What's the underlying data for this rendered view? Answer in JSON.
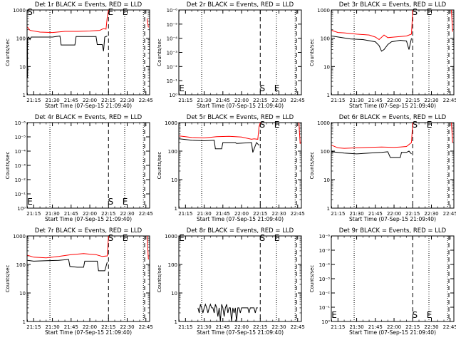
{
  "chart_data": [
    {
      "type": "line",
      "title": "Det 1r BLACK = Events, RED = LLD",
      "ylabel": "Counts/sec",
      "xlabel": "Start Time (07-Sep-15 21:09:40)",
      "x_ticks": [
        "21:15",
        "21:30",
        "21:45",
        "22:00",
        "22:15",
        "22:30",
        "22:45"
      ],
      "y_scale": "log",
      "ylim": [
        1,
        1000
      ],
      "y_ticks": [
        "1",
        "10",
        "100",
        "1000"
      ],
      "markers": [
        "S",
        "E",
        "E"
      ],
      "series": [
        {
          "color": "#000000",
          "points": [
            [
              "21:10",
              4
            ],
            [
              "21:10",
              100
            ],
            [
              "21:11",
              110
            ],
            [
              "21:12",
              90
            ],
            [
              "21:13",
              110
            ],
            [
              "21:20",
              110
            ],
            [
              "21:30",
              110
            ],
            [
              "21:36",
              120
            ],
            [
              "21:37",
              58
            ],
            [
              "21:48",
              58
            ],
            [
              "21:49",
              115
            ],
            [
              "22:05",
              115
            ],
            [
              "22:06",
              60
            ],
            [
              "22:10",
              60
            ],
            [
              "22:11",
              35
            ],
            [
              "22:12",
              110
            ],
            [
              "22:14",
              120
            ]
          ]
        },
        {
          "color": "#ff0000",
          "points": [
            [
              "21:10",
              250
            ],
            [
              "21:12",
              190
            ],
            [
              "21:20",
              165
            ],
            [
              "21:30",
              160
            ],
            [
              "21:40",
              175
            ],
            [
              "21:50",
              175
            ],
            [
              "22:00",
              180
            ],
            [
              "22:08",
              190
            ],
            [
              "22:11",
              220
            ],
            [
              "22:13",
              210
            ],
            [
              "22:14",
              550
            ],
            [
              "22:15",
              1000
            ]
          ]
        },
        {
          "color": "#ff0000",
          "points": [
            [
              "22:46",
              500
            ],
            [
              "22:47",
              240
            ]
          ]
        }
      ]
    },
    {
      "type": "line",
      "title": "Det 2r BLACK = Events, RED = LLD",
      "ylabel": "Counts/sec",
      "xlabel": "Start Time (07-Sep-15 21:09:40)",
      "x_ticks": [
        "21:15",
        "21:30",
        "21:45",
        "22:00",
        "22:15",
        "22:30",
        "22:45"
      ],
      "y_scale": "log",
      "ylim": [
        1e-06,
        1
      ],
      "y_ticks": [
        "10⁰",
        "10⁻¹",
        "10⁻²",
        "10⁻³",
        "10⁻⁴",
        "10⁻⁵",
        "10⁻⁶"
      ],
      "markers": [
        "E",
        "S",
        "E"
      ],
      "series": []
    },
    {
      "type": "line",
      "title": "Det 3r BLACK = Events, RED = LLD",
      "ylabel": "Counts/sec",
      "xlabel": "Start Time (07-Sep-15 21:09:40)",
      "x_ticks": [
        "21:15",
        "21:30",
        "21:45",
        "22:00",
        "22:15",
        "22:30",
        "22:45"
      ],
      "y_scale": "log",
      "ylim": [
        1,
        1000
      ],
      "y_ticks": [
        "1",
        "10",
        "100",
        "1000"
      ],
      "markers": [
        "S",
        "E"
      ],
      "series": [
        {
          "color": "#000000",
          "points": [
            [
              "21:10",
              120
            ],
            [
              "21:25",
              95
            ],
            [
              "21:35",
              90
            ],
            [
              "21:45",
              75
            ],
            [
              "21:48",
              55
            ],
            [
              "21:50",
              35
            ],
            [
              "21:52",
              40
            ],
            [
              "21:55",
              60
            ],
            [
              "21:58",
              75
            ],
            [
              "22:05",
              85
            ],
            [
              "22:10",
              80
            ],
            [
              "22:12",
              40
            ],
            [
              "22:14",
              100
            ]
          ]
        },
        {
          "color": "#ff0000",
          "points": [
            [
              "21:10",
              190
            ],
            [
              "21:15",
              160
            ],
            [
              "21:20",
              155
            ],
            [
              "21:30",
              140
            ],
            [
              "21:40",
              130
            ],
            [
              "21:45",
              110
            ],
            [
              "21:48",
              90
            ],
            [
              "21:52",
              130
            ],
            [
              "21:55",
              105
            ],
            [
              "22:00",
              110
            ],
            [
              "22:10",
              120
            ],
            [
              "22:14",
              140
            ],
            [
              "22:15",
              1000
            ]
          ]
        },
        {
          "color": "#ff0000",
          "points": [
            [
              "22:46",
              1000
            ],
            [
              "22:47",
              170
            ]
          ]
        }
      ]
    },
    {
      "type": "line",
      "title": "Det 4r BLACK = Events, RED = LLD",
      "ylabel": "Counts/sec",
      "xlabel": "Start Time (07-Sep-15 21:09:40)",
      "x_ticks": [
        "21:15",
        "21:30",
        "21:45",
        "22:00",
        "22:15",
        "22:30",
        "22:45"
      ],
      "y_scale": "log",
      "ylim": [
        1e-06,
        1
      ],
      "y_ticks": [
        "10⁰",
        "10⁻¹",
        "10⁻²",
        "10⁻³",
        "10⁻⁴",
        "10⁻⁵",
        "10⁻⁶"
      ],
      "markers": [
        "E",
        "S",
        "E"
      ],
      "series": []
    },
    {
      "type": "line",
      "title": "Det 5r BLACK = Events, RED = LLD",
      "ylabel": "Counts/sec",
      "xlabel": "Start Time (07-Sep-15 21:09:40)",
      "x_ticks": [
        "21:15",
        "21:30",
        "21:45",
        "22:00",
        "22:15",
        "22:30",
        "22:45"
      ],
      "y_scale": "log",
      "ylim": [
        1,
        1000
      ],
      "y_ticks": [
        "1",
        "10",
        "100",
        "1000"
      ],
      "markers": [
        "S",
        "E"
      ],
      "series": [
        {
          "color": "#000000",
          "points": [
            [
              "21:10",
              270
            ],
            [
              "21:20",
              240
            ],
            [
              "21:30",
              230
            ],
            [
              "21:38",
              240
            ],
            [
              "21:39",
              120
            ],
            [
              "21:44",
              120
            ],
            [
              "21:45",
              200
            ],
            [
              "21:55",
              200
            ],
            [
              "21:56",
              185
            ],
            [
              "22:08",
              200
            ],
            [
              "22:09",
              90
            ],
            [
              "22:12",
              200
            ],
            [
              "22:14",
              160
            ]
          ]
        },
        {
          "color": "#ff0000",
          "points": [
            [
              "21:10",
              340
            ],
            [
              "21:20",
              300
            ],
            [
              "21:30",
              290
            ],
            [
              "21:40",
              320
            ],
            [
              "21:50",
              330
            ],
            [
              "22:00",
              310
            ],
            [
              "22:08",
              260
            ],
            [
              "22:10",
              270
            ],
            [
              "22:13",
              260
            ],
            [
              "22:14",
              700
            ],
            [
              "22:15",
              1000
            ]
          ]
        },
        {
          "color": "#ff0000",
          "points": [
            [
              "22:46",
              1000
            ],
            [
              "22:47",
              180
            ]
          ]
        }
      ]
    },
    {
      "type": "line",
      "title": "Det 6r BLACK = Events, RED = LLD",
      "ylabel": "Counts/sec",
      "xlabel": "Start Time (07-Sep-15 21:09:40)",
      "x_ticks": [
        "21:15",
        "21:30",
        "21:45",
        "22:00",
        "22:15",
        "22:30",
        "22:45"
      ],
      "y_scale": "log",
      "ylim": [
        1,
        1000
      ],
      "y_ticks": [
        "1",
        "10",
        "100",
        "1000"
      ],
      "markers": [
        "S",
        "E"
      ],
      "series": [
        {
          "color": "#000000",
          "points": [
            [
              "21:10",
              95
            ],
            [
              "21:20",
              85
            ],
            [
              "21:30",
              80
            ],
            [
              "21:40",
              85
            ],
            [
              "21:50",
              90
            ],
            [
              "21:55",
              95
            ],
            [
              "21:57",
              60
            ],
            [
              "22:05",
              60
            ],
            [
              "22:06",
              90
            ],
            [
              "22:10",
              90
            ],
            [
              "22:12",
              100
            ],
            [
              "22:14",
              80
            ]
          ]
        },
        {
          "color": "#ff0000",
          "points": [
            [
              "21:10",
              160
            ],
            [
              "21:15",
              130
            ],
            [
              "21:20",
              125
            ],
            [
              "21:30",
              130
            ],
            [
              "21:40",
              135
            ],
            [
              "21:50",
              140
            ],
            [
              "22:00",
              135
            ],
            [
              "22:05",
              140
            ],
            [
              "22:10",
              145
            ],
            [
              "22:14",
              200
            ],
            [
              "22:15",
              1000
            ]
          ]
        },
        {
          "color": "#ff0000",
          "points": [
            [
              "22:46",
              1000
            ],
            [
              "22:47",
              200
            ]
          ]
        }
      ]
    },
    {
      "type": "line",
      "title": "Det 7r BLACK = Events, RED = LLD",
      "ylabel": "Counts/sec",
      "xlabel": "Start Time (07-Sep-15 21:09:40)",
      "x_ticks": [
        "21:15",
        "21:30",
        "21:45",
        "22:00",
        "22:15",
        "22:30",
        "22:45"
      ],
      "y_scale": "log",
      "ylim": [
        1,
        1000
      ],
      "y_ticks": [
        "1",
        "10",
        "100",
        "1000"
      ],
      "markers": [
        "S",
        "E"
      ],
      "series": [
        {
          "color": "#000000",
          "points": [
            [
              "21:10",
              140
            ],
            [
              "21:15",
              130
            ],
            [
              "21:25",
              135
            ],
            [
              "21:35",
              140
            ],
            [
              "21:43",
              150
            ],
            [
              "21:44",
              85
            ],
            [
              "21:50",
              80
            ],
            [
              "21:55",
              80
            ],
            [
              "21:56",
              130
            ],
            [
              "22:06",
              130
            ],
            [
              "22:07",
              60
            ],
            [
              "22:12",
              60
            ],
            [
              "22:14",
              120
            ]
          ]
        },
        {
          "color": "#ff0000",
          "points": [
            [
              "21:10",
              210
            ],
            [
              "21:15",
              180
            ],
            [
              "21:25",
              170
            ],
            [
              "21:35",
              190
            ],
            [
              "21:45",
              220
            ],
            [
              "21:55",
              240
            ],
            [
              "22:05",
              220
            ],
            [
              "22:10",
              190
            ],
            [
              "22:14",
              200
            ],
            [
              "22:15",
              1000
            ]
          ]
        },
        {
          "color": "#ff0000",
          "points": [
            [
              "22:46",
              1000
            ],
            [
              "22:47",
              150
            ]
          ]
        }
      ]
    },
    {
      "type": "line",
      "title": "Det 8r BLACK = Events, RED = LLD",
      "ylabel": "Counts/sec",
      "xlabel": "Start Time (07-Sep-15 21:09:40)",
      "x_ticks": [
        "21:15",
        "21:30",
        "21:45",
        "22:00",
        "22:15",
        "22:30",
        "22:45"
      ],
      "y_scale": "log",
      "ylim": [
        1,
        1000
      ],
      "y_ticks": [
        "1",
        "10",
        "100",
        "1000"
      ],
      "markers": [
        "E",
        "S",
        "E"
      ],
      "series": [
        {
          "color": "#000000",
          "points": [
            [
              "21:25",
              3
            ],
            [
              "21:26",
              2
            ],
            [
              "21:27",
              4
            ],
            [
              "21:28",
              3
            ],
            [
              "21:29",
              2
            ],
            [
              "21:30",
              3
            ],
            [
              "21:31",
              4
            ],
            [
              "21:32",
              3
            ],
            [
              "21:33",
              2
            ],
            [
              "21:34",
              3
            ],
            [
              "21:35",
              4
            ],
            [
              "21:36",
              3
            ],
            [
              "21:37",
              3
            ],
            [
              "21:38",
              2
            ],
            [
              "21:39",
              4
            ],
            [
              "21:40",
              3
            ],
            [
              "21:41",
              1.5
            ],
            [
              "21:42",
              3
            ],
            [
              "21:43",
              1
            ],
            [
              "21:44",
              4
            ],
            [
              "21:45",
              3
            ],
            [
              "21:46",
              1.5
            ],
            [
              "21:47",
              3
            ],
            [
              "21:48",
              4
            ],
            [
              "21:49",
              2
            ],
            [
              "21:50",
              3
            ],
            [
              "21:51",
              3
            ],
            [
              "21:52",
              1
            ],
            [
              "21:53",
              3
            ],
            [
              "21:54",
              2
            ],
            [
              "21:55",
              3
            ],
            [
              "21:56",
              1
            ],
            [
              "21:57",
              3
            ],
            [
              "21:58",
              3
            ],
            [
              "21:59",
              2
            ],
            [
              "22:00",
              3
            ],
            [
              "22:05",
              3
            ],
            [
              "22:06",
              2
            ],
            [
              "22:07",
              3
            ],
            [
              "22:10",
              3
            ],
            [
              "22:11",
              2
            ],
            [
              "22:12",
              3
            ],
            [
              "22:13",
              3
            ]
          ]
        }
      ]
    },
    {
      "type": "line",
      "title": "Det 9r BLACK = Events, RED = LLD",
      "ylabel": "Counts/sec",
      "xlabel": "Start Time (07-Sep-15 21:09:40)",
      "x_ticks": [
        "21:15",
        "21:30",
        "21:45",
        "22:00",
        "22:15",
        "22:30",
        "22:45"
      ],
      "y_scale": "log",
      "ylim": [
        1e-06,
        1
      ],
      "y_ticks": [
        "10⁰",
        "10⁻¹",
        "10⁻²",
        "10⁻³",
        "10⁻⁴",
        "10⁻⁵",
        "10⁻⁶"
      ],
      "markers": [
        "E",
        "S",
        "E"
      ],
      "series": []
    }
  ]
}
